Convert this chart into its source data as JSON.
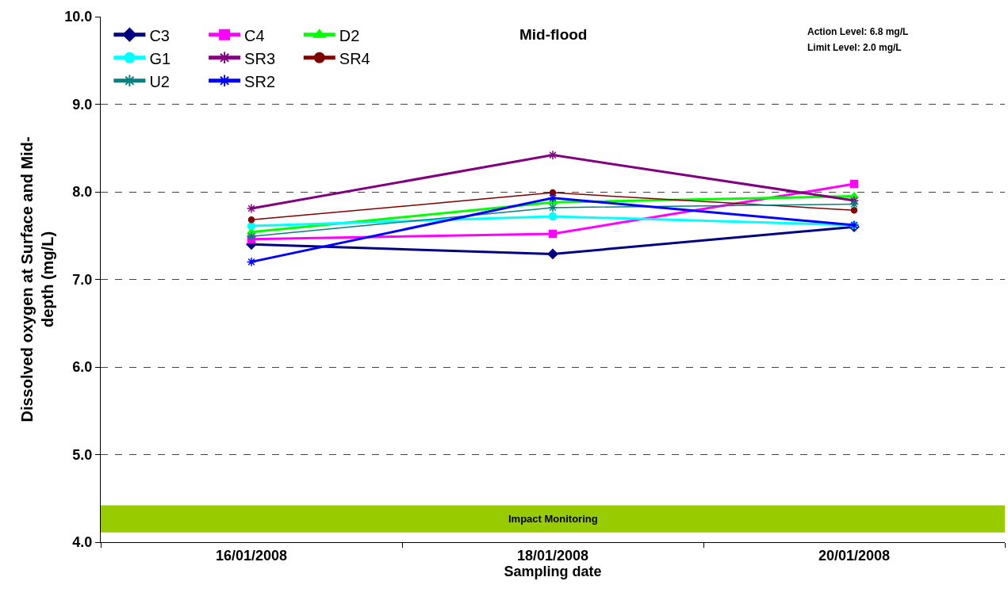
{
  "chart_data": {
    "type": "line",
    "title": "Mid-flood",
    "xlabel": "Sampling date",
    "ylabel": "Dissolved oxygen at Surface and Mid-depth (mg/L)",
    "categories": [
      "16/01/2008",
      "18/01/2008",
      "20/01/2008"
    ],
    "series": [
      {
        "name": "C3",
        "color": "#000080",
        "marker": "diamond",
        "values": [
          7.4,
          7.29,
          7.6
        ]
      },
      {
        "name": "C4",
        "color": "#ff00ff",
        "marker": "square",
        "values": [
          7.46,
          7.52,
          8.09
        ]
      },
      {
        "name": "D2",
        "color": "#00ff00",
        "marker": "triangle",
        "values": [
          7.54,
          7.88,
          7.95
        ]
      },
      {
        "name": "G1",
        "color": "#00ffff",
        "marker": "circle",
        "values": [
          7.61,
          7.72,
          7.62
        ]
      },
      {
        "name": "SR3",
        "color": "#800080",
        "marker": "cross",
        "values": [
          7.81,
          8.42,
          7.9
        ]
      },
      {
        "name": "SR4",
        "color": "#800000",
        "marker": "circle",
        "values": [
          7.68,
          7.99,
          7.79
        ]
      },
      {
        "name": "U2",
        "color": "#008080",
        "marker": "cross",
        "values": [
          7.49,
          7.82,
          7.86
        ]
      },
      {
        "name": "SR2",
        "color": "#0000ff",
        "marker": "cross",
        "values": [
          7.2,
          7.93,
          7.62
        ]
      }
    ],
    "ylim": [
      4.0,
      10.0
    ],
    "yticks": [
      {
        "value": 4,
        "label": "4.0"
      },
      {
        "value": 5,
        "label": "5.0"
      },
      {
        "value": 6,
        "label": "6.0"
      },
      {
        "value": 7,
        "label": "7.0"
      },
      {
        "value": 8,
        "label": "8.0"
      },
      {
        "value": 9,
        "label": "9.0"
      },
      {
        "value": 10,
        "label": "10.0"
      }
    ],
    "grid": "y",
    "legend": "top left",
    "line_style": "solid",
    "bands": [
      {
        "axis": "y",
        "from": 4.11,
        "to": 4.42,
        "label": "Impact Monitoring",
        "color": "#99cc00"
      }
    ],
    "annotations": [
      "Action Level: 6.8 mg/L",
      "Limit Level: 2.0 mg/L"
    ]
  }
}
